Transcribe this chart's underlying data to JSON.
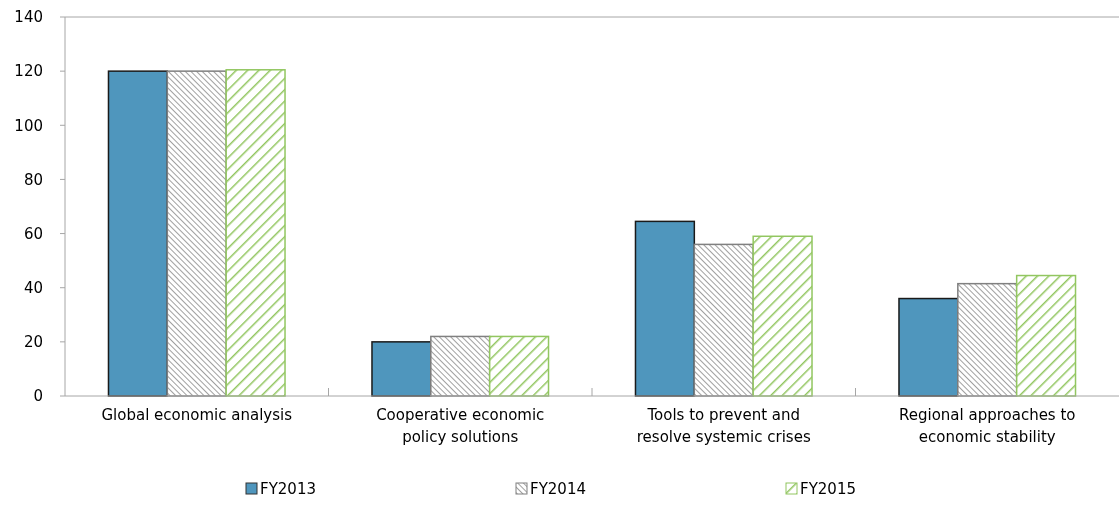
{
  "chart_data": {
    "type": "bar",
    "categories": [
      "Global economic analysis",
      "Cooperative economic policy solutions",
      "Tools to prevent and resolve systemic crises",
      "Regional approaches to economic stability"
    ],
    "series": [
      {
        "name": "FY2013",
        "color": "#4f96bd",
        "values": [
          120,
          20,
          64.5,
          36
        ]
      },
      {
        "name": "FY2014",
        "color": "#808080",
        "values": [
          120,
          22,
          56,
          41.5
        ]
      },
      {
        "name": "FY2015",
        "color": "#92c660",
        "values": [
          120.5,
          22,
          59,
          44.5
        ]
      }
    ],
    "ylim": [
      0,
      140
    ],
    "yticks": [
      0,
      20,
      40,
      60,
      80,
      100,
      120,
      140
    ],
    "grid": false,
    "legend": "bottom"
  }
}
